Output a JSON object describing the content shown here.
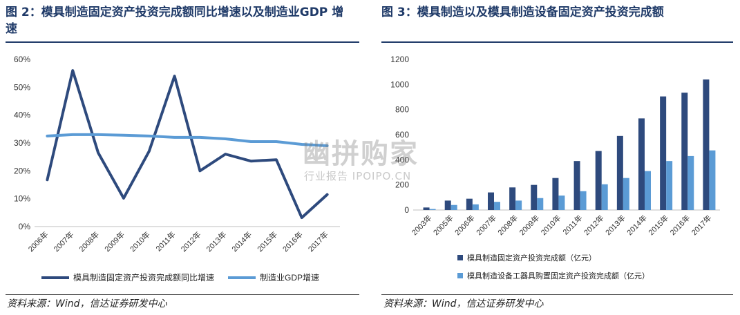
{
  "left": {
    "title": "图 2：模具制造固定资产投资完成额同比增速以及制造业GDP 增速",
    "source": "资料来源：Wind，信达证券研发中心"
  },
  "right": {
    "title": "图 3：模具制造以及模具制造设备固定资产投资完成额",
    "source": "资料来源：Wind，信达证券研发中心"
  },
  "watermark": {
    "main": "幽拼购家",
    "sub": "行业报告 IPOIPO.CN"
  },
  "colors": {
    "dark_blue": "#2e4a7d",
    "light_blue": "#5b9bd5",
    "title": "#1f3a68"
  },
  "chart_data": [
    {
      "type": "line",
      "categories": [
        "2006年",
        "2007年",
        "2008年",
        "2009年",
        "2010年",
        "2011年",
        "2012年",
        "2013年",
        "2014年",
        "2015年",
        "2016年",
        "2017年"
      ],
      "yticks": [
        "0%",
        "10%",
        "20%",
        "30%",
        "40%",
        "50%",
        "60%"
      ],
      "ylim": [
        0,
        60
      ],
      "series": [
        {
          "name": "模具制造固定资产投资完成额同比增速",
          "color": "#2e4a7d",
          "values": [
            16.8,
            56,
            26.5,
            10.2,
            27,
            54,
            20,
            26,
            23.5,
            24,
            3.2,
            11.5
          ]
        },
        {
          "name": "制造业GDP增速",
          "color": "#5b9bd5",
          "values": [
            32.5,
            33,
            33,
            32.8,
            32.5,
            32,
            32,
            31.5,
            30.5,
            30.5,
            29.5,
            29
          ]
        }
      ],
      "legend_position": "bottom"
    },
    {
      "type": "bar",
      "categories": [
        "2003年",
        "2005年",
        "2006年",
        "2007年",
        "2008年",
        "2009年",
        "2010年",
        "2011年",
        "2012年",
        "2013年",
        "2014年",
        "2015年",
        "2016年",
        "2017年"
      ],
      "yticks": [
        "0",
        "200",
        "400",
        "600",
        "800",
        "1000",
        "1200"
      ],
      "ylim": [
        0,
        1200
      ],
      "series": [
        {
          "name": "模具制造固定资产投资完成额（亿元）",
          "color": "#2e4a7d",
          "values": [
            20,
            75,
            90,
            140,
            180,
            200,
            255,
            390,
            470,
            590,
            730,
            905,
            935,
            1040
          ]
        },
        {
          "name": "模具制造设备工器具购置固定资产投资完成额（亿元）",
          "color": "#5b9bd5",
          "values": [
            8,
            40,
            45,
            65,
            75,
            95,
            115,
            150,
            205,
            255,
            310,
            390,
            430,
            475
          ]
        }
      ],
      "legend_position": "bottom"
    }
  ]
}
